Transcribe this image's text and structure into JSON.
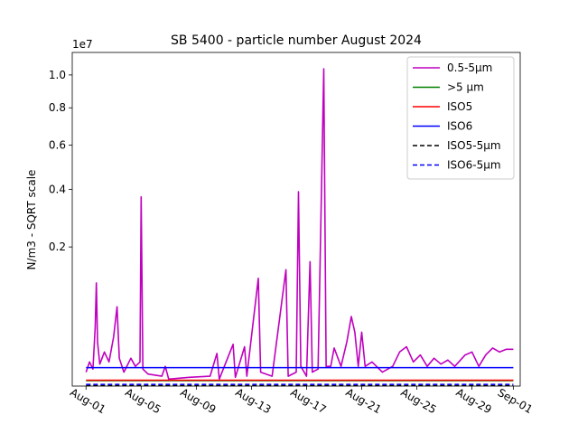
{
  "chart_data": {
    "type": "line",
    "title": "SB 5400 - particle number August 2024",
    "ylabel": "N/m3 - SQRT scale",
    "xlabel": "",
    "y_scale": "sqrt",
    "y_multiplier_label": "1e7",
    "ylim": [
      0,
      11500000
    ],
    "xlim": [
      "2024-07-31",
      "2024-09-01 12:00"
    ],
    "yticks": [
      {
        "value": 2000000,
        "label": "0.2"
      },
      {
        "value": 4000000,
        "label": "0.4"
      },
      {
        "value": 6000000,
        "label": "0.6"
      },
      {
        "value": 8000000,
        "label": "0.8"
      },
      {
        "value": 10000000,
        "label": "1.0"
      }
    ],
    "xticks": [
      {
        "date": "2024-08-01",
        "label": "Aug-01"
      },
      {
        "date": "2024-08-05",
        "label": "Aug-05"
      },
      {
        "date": "2024-08-09",
        "label": "Aug-09"
      },
      {
        "date": "2024-08-13",
        "label": "Aug-13"
      },
      {
        "date": "2024-08-17",
        "label": "Aug-17"
      },
      {
        "date": "2024-08-21",
        "label": "Aug-21"
      },
      {
        "date": "2024-08-25",
        "label": "Aug-25"
      },
      {
        "date": "2024-08-29",
        "label": "Aug-29"
      },
      {
        "date": "2024-09-01",
        "label": "Sep-01"
      }
    ],
    "legend_position": "top-right",
    "series": [
      {
        "name": "0.5-5µm",
        "color": "#bf00bf",
        "dash": "solid",
        "points": [
          [
            "2024-08-01 00:00",
            20000
          ],
          [
            "2024-08-01 06:00",
            60000
          ],
          [
            "2024-08-01 12:00",
            30000
          ],
          [
            "2024-08-01 16:00",
            350000
          ],
          [
            "2024-08-01 18:00",
            1100000
          ],
          [
            "2024-08-01 20:00",
            200000
          ],
          [
            "2024-08-02 00:00",
            50000
          ],
          [
            "2024-08-02 08:00",
            120000
          ],
          [
            "2024-08-02 16:00",
            60000
          ],
          [
            "2024-08-03 00:00",
            250000
          ],
          [
            "2024-08-03 06:00",
            650000
          ],
          [
            "2024-08-03 10:00",
            80000
          ],
          [
            "2024-08-03 18:00",
            20000
          ],
          [
            "2024-08-04 06:00",
            80000
          ],
          [
            "2024-08-04 14:00",
            40000
          ],
          [
            "2024-08-04 22:00",
            60000
          ],
          [
            "2024-08-05 00:00",
            3700000
          ],
          [
            "2024-08-05 03:00",
            30000
          ],
          [
            "2024-08-05 12:00",
            15000
          ],
          [
            "2024-08-06 12:00",
            10000
          ],
          [
            "2024-08-06 18:00",
            40000
          ],
          [
            "2024-08-07 00:00",
            5000
          ],
          [
            "2024-08-08 12:00",
            8000
          ],
          [
            "2024-08-10 00:00",
            10000
          ],
          [
            "2024-08-10 12:00",
            110000
          ],
          [
            "2024-08-10 16:00",
            5000
          ],
          [
            "2024-08-11 16:00",
            180000
          ],
          [
            "2024-08-11 20:00",
            8000
          ],
          [
            "2024-08-12 12:00",
            160000
          ],
          [
            "2024-08-12 16:00",
            10000
          ],
          [
            "2024-08-13 12:00",
            1200000
          ],
          [
            "2024-08-13 16:00",
            20000
          ],
          [
            "2024-08-14 12:00",
            10000
          ],
          [
            "2024-08-15 12:00",
            1400000
          ],
          [
            "2024-08-15 16:00",
            10000
          ],
          [
            "2024-08-16 06:00",
            20000
          ],
          [
            "2024-08-16 08:00",
            1200000
          ],
          [
            "2024-08-16 10:00",
            3900000
          ],
          [
            "2024-08-16 14:00",
            40000
          ],
          [
            "2024-08-17 00:00",
            10000
          ],
          [
            "2024-08-17 06:00",
            1600000
          ],
          [
            "2024-08-17 10:00",
            20000
          ],
          [
            "2024-08-17 20:00",
            30000
          ],
          [
            "2024-08-18 06:00",
            10400000
          ],
          [
            "2024-08-18 10:00",
            40000
          ],
          [
            "2024-08-18 18:00",
            40000
          ],
          [
            "2024-08-19 00:00",
            150000
          ],
          [
            "2024-08-19 12:00",
            40000
          ],
          [
            "2024-08-19 22:00",
            200000
          ],
          [
            "2024-08-20 06:00",
            500000
          ],
          [
            "2024-08-20 12:00",
            300000
          ],
          [
            "2024-08-20 18:00",
            40000
          ],
          [
            "2024-08-21 00:00",
            300000
          ],
          [
            "2024-08-21 06:00",
            40000
          ],
          [
            "2024-08-21 18:00",
            60000
          ],
          [
            "2024-08-22 12:00",
            20000
          ],
          [
            "2024-08-23 06:00",
            40000
          ],
          [
            "2024-08-23 18:00",
            120000
          ],
          [
            "2024-08-24 06:00",
            160000
          ],
          [
            "2024-08-24 18:00",
            60000
          ],
          [
            "2024-08-25 06:00",
            100000
          ],
          [
            "2024-08-25 18:00",
            40000
          ],
          [
            "2024-08-26 06:00",
            80000
          ],
          [
            "2024-08-26 18:00",
            50000
          ],
          [
            "2024-08-27 06:00",
            70000
          ],
          [
            "2024-08-27 18:00",
            40000
          ],
          [
            "2024-08-28 12:00",
            100000
          ],
          [
            "2024-08-29 00:00",
            120000
          ],
          [
            "2024-08-29 12:00",
            40000
          ],
          [
            "2024-08-30 00:00",
            100000
          ],
          [
            "2024-08-30 12:00",
            150000
          ],
          [
            "2024-08-31 00:00",
            120000
          ],
          [
            "2024-08-31 12:00",
            140000
          ],
          [
            "2024-09-01 00:00",
            140000
          ]
        ]
      },
      {
        "name": ">5 µm",
        "color": "#008000",
        "dash": "solid",
        "points": [
          [
            "2024-08-01 00:00",
            3000
          ],
          [
            "2024-09-01 00:00",
            3000
          ]
        ]
      },
      {
        "name": "ISO5",
        "color": "#ff0000",
        "dash": "solid",
        "points": [
          [
            "2024-08-01 00:00",
            3520
          ],
          [
            "2024-09-01 00:00",
            3520
          ]
        ]
      },
      {
        "name": "ISO6",
        "color": "#0000ff",
        "dash": "solid",
        "points": [
          [
            "2024-08-01 00:00",
            35200
          ],
          [
            "2024-09-01 00:00",
            35200
          ]
        ]
      },
      {
        "name": "ISO5-5µm",
        "color": "#000000",
        "dash": "dashed",
        "points": [
          [
            "2024-08-01 00:00",
            29
          ],
          [
            "2024-09-01 00:00",
            29
          ]
        ]
      },
      {
        "name": "ISO6-5µm",
        "color": "#0000ff",
        "dash": "dashed",
        "points": [
          [
            "2024-08-01 00:00",
            293
          ],
          [
            "2024-09-01 00:00",
            293
          ]
        ]
      }
    ]
  }
}
